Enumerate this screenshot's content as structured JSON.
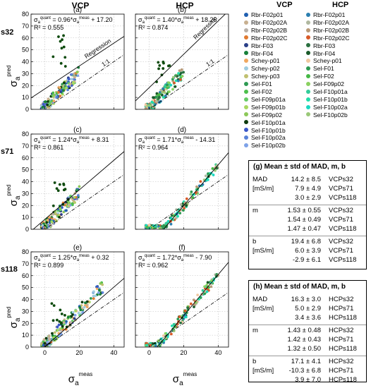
{
  "column_titles": {
    "vcp": "VCP",
    "hcp": "HCP"
  },
  "row_labels": {
    "s32": "s32",
    "s71": "s71",
    "s118": "s118"
  },
  "axis": {
    "xlabel_base": "σ",
    "xlabel_sub": "a",
    "xlabel_sup": "meas",
    "ylabel_base": "σ",
    "ylabel_sub": "a",
    "ylabel_sup": "pred",
    "y_ticks": [
      0,
      10,
      20,
      30,
      40,
      50,
      60,
      70,
      80
    ],
    "x_ticks": [
      0,
      20,
      40
    ]
  },
  "panel_annotations": {
    "regression": "Regression",
    "one_to_one": "1:1"
  },
  "legend": {
    "vcp_header": "VCP",
    "hcp_header": "HCP",
    "vcp_items": [
      {
        "label": "Rbr-F02p01",
        "color": "#1f5fb0"
      },
      {
        "label": "Rbr-F02p02A",
        "color": "#c8b090"
      },
      {
        "label": "Rbr-F02p02B",
        "color": "#b8b0a8"
      },
      {
        "label": "Rbr-F02p02C",
        "color": "#e07a30"
      },
      {
        "label": "Rbr-F03",
        "color": "#2a3f88"
      },
      {
        "label": "Rbr-F04",
        "color": "#17803a"
      },
      {
        "label": "Schey-p01",
        "color": "#f0a860"
      },
      {
        "label": "Schey-p02",
        "color": "#a0cce0"
      },
      {
        "label": "Schey-p03",
        "color": "#c0c070"
      },
      {
        "label": "Sel-F01",
        "color": "#2e9a52"
      },
      {
        "label": "Sel-F02",
        "color": "#4cbf4c"
      },
      {
        "label": "Sel-F09p01a",
        "color": "#66cc66"
      },
      {
        "label": "Sel-F09p01b",
        "color": "#a8d860"
      },
      {
        "label": "Sel-F09p02",
        "color": "#8cc858"
      },
      {
        "label": "Sel-F10p01a",
        "color": "#0d3a0d"
      },
      {
        "label": "Sel-F10p01b",
        "color": "#3a56c8"
      },
      {
        "label": "Sel-F10p02a",
        "color": "#5a82d8"
      },
      {
        "label": "Sel-F10p02b",
        "color": "#7ea2e8"
      }
    ],
    "hcp_items": [
      {
        "label": "Rbr-F02p01",
        "color": "#2b7fb0"
      },
      {
        "label": "Rbr-F02p02A",
        "color": "#b0b8a0"
      },
      {
        "label": "Rbr-F02p02B",
        "color": "#b89a78"
      },
      {
        "label": "Rbr-F02p02C",
        "color": "#d85a28"
      },
      {
        "label": "Rbr-F03",
        "color": "#2a7040"
      },
      {
        "label": "Rbr-F04",
        "color": "#1a5a2a"
      },
      {
        "label": "Schey-p01",
        "color": "#f0c8a0"
      },
      {
        "label": "Sel-F01",
        "color": "#2e9a52"
      },
      {
        "label": "Sel-F02",
        "color": "#45b845"
      },
      {
        "label": "Sel-F09p02",
        "color": "#8ad060"
      },
      {
        "label": "Sel-F10p01a",
        "color": "#33cc99"
      },
      {
        "label": "Sel-F10p01b",
        "color": "#22ddaa"
      },
      {
        "label": "Sel-F10p02a",
        "color": "#1ad8c0"
      },
      {
        "label": "Sel-F10p02b",
        "color": "#9ac878"
      }
    ]
  },
  "box_g": {
    "title": "(g) Mean ± std of MAD, m, b",
    "rows": [
      {
        "label": "MAD",
        "value": "14.2 ± 8.5",
        "name": "VCPs32"
      },
      {
        "label": "[mS/m]",
        "value": "7.9 ± 4.9",
        "name": "VCPs71"
      },
      {
        "label": "",
        "value": "3.0 ± 2.9",
        "name": "VCPs118"
      },
      {
        "label": "m",
        "value": "1.53 ± 0.55",
        "name": "VCPs32"
      },
      {
        "label": "",
        "value": "1.54 ± 0.49",
        "name": "VCPs71"
      },
      {
        "label": "",
        "value": "1.47 ± 0.47",
        "name": "VCPs118"
      },
      {
        "label": "b",
        "value": "19.4 ± 6.8",
        "name": "VCPs32"
      },
      {
        "label": "[mS/m]",
        "value": "6.0 ± 3.9",
        "name": "VCPs71"
      },
      {
        "label": "",
        "value": "-2.9 ± 6.1",
        "name": "VCPs118"
      }
    ]
  },
  "box_h": {
    "title": "(h) Mean ± std of MAD, m, b",
    "rows": [
      {
        "label": "MAD",
        "value": "16.3 ± 3.0",
        "name": "HCPs32"
      },
      {
        "label": "[mS/m]",
        "value": "5.0 ± 2.9",
        "name": "HCPs71"
      },
      {
        "label": "",
        "value": "3.4 ± 3.6",
        "name": "HCPs118"
      },
      {
        "label": "m",
        "value": "1.43 ± 0.48",
        "name": "HCPs32"
      },
      {
        "label": "",
        "value": "1.42 ± 0.43",
        "name": "HCPs71"
      },
      {
        "label": "",
        "value": "1.32 ± 0.50",
        "name": "HCPs118"
      },
      {
        "label": "b",
        "value": "17.1 ± 4.1",
        "name": "HCPs32"
      },
      {
        "label": "[mS/m]",
        "value": "-10.3 ± 6.8",
        "name": "HCPs71"
      },
      {
        "label": "",
        "value": "3.9 ± 7.0",
        "name": "HCPs118"
      }
    ]
  },
  "chart_data": [
    {
      "id": "a",
      "type": "scatter",
      "letter": "(a)",
      "coil": "VCP",
      "depth": "s32",
      "regression": {
        "m": 0.96,
        "b": 17.2,
        "r2": 0.555
      },
      "eq_text": "σ_a^quant = 0.96*σ_a^meas + 17.20",
      "r2_text": "R² = 0.555",
      "xlim": [
        -8,
        46
      ],
      "ylim": [
        0,
        80
      ]
    },
    {
      "id": "b",
      "type": "scatter",
      "letter": "(b)",
      "coil": "HCP",
      "depth": "s32",
      "regression": {
        "m": 1.4,
        "b": 18.26,
        "r2": 0.874
      },
      "eq_text": "σ_a^quant = 1.40*σ_a^meas + 18.26",
      "r2_text": "R² = 0.874",
      "xlim": [
        -8,
        46
      ],
      "ylim": [
        0,
        80
      ]
    },
    {
      "id": "c",
      "type": "scatter",
      "letter": "(c)",
      "coil": "VCP",
      "depth": "s71",
      "regression": {
        "m": 1.24,
        "b": 8.31,
        "r2": 0.861
      },
      "eq_text": "σ_a^quant = 1.24*σ_a^meas + 8.31",
      "r2_text": "R² = 0.861",
      "xlim": [
        -8,
        46
      ],
      "ylim": [
        0,
        80
      ]
    },
    {
      "id": "d",
      "type": "scatter",
      "letter": "(d)",
      "coil": "HCP",
      "depth": "s71",
      "regression": {
        "m": 1.71,
        "b": -14.31,
        "r2": 0.964
      },
      "eq_text": "σ_a^quant = 1.71*σ_a^meas - 14.31",
      "r2_text": "R² = 0.964",
      "xlim": [
        -8,
        46
      ],
      "ylim": [
        0,
        80
      ]
    },
    {
      "id": "e",
      "type": "scatter",
      "letter": "(e)",
      "coil": "VCP",
      "depth": "s118",
      "regression": {
        "m": 1.25,
        "b": 0.32,
        "r2": 0.899
      },
      "eq_text": "σ_a^quant = 1.25*σ_a^meas + 0.32",
      "r2_text": "R² = 0.899",
      "xlim": [
        -8,
        46
      ],
      "ylim": [
        0,
        80
      ]
    },
    {
      "id": "f",
      "type": "scatter",
      "letter": "(f)",
      "coil": "HCP",
      "depth": "s118",
      "regression": {
        "m": 1.72,
        "b": -7.9,
        "r2": 0.962
      },
      "eq_text": "σ_a^quant = 1.72*σ_a^meas - 7.90",
      "r2_text": "R² = 0.962",
      "xlim": [
        -8,
        46
      ],
      "ylim": [
        0,
        80
      ]
    }
  ]
}
